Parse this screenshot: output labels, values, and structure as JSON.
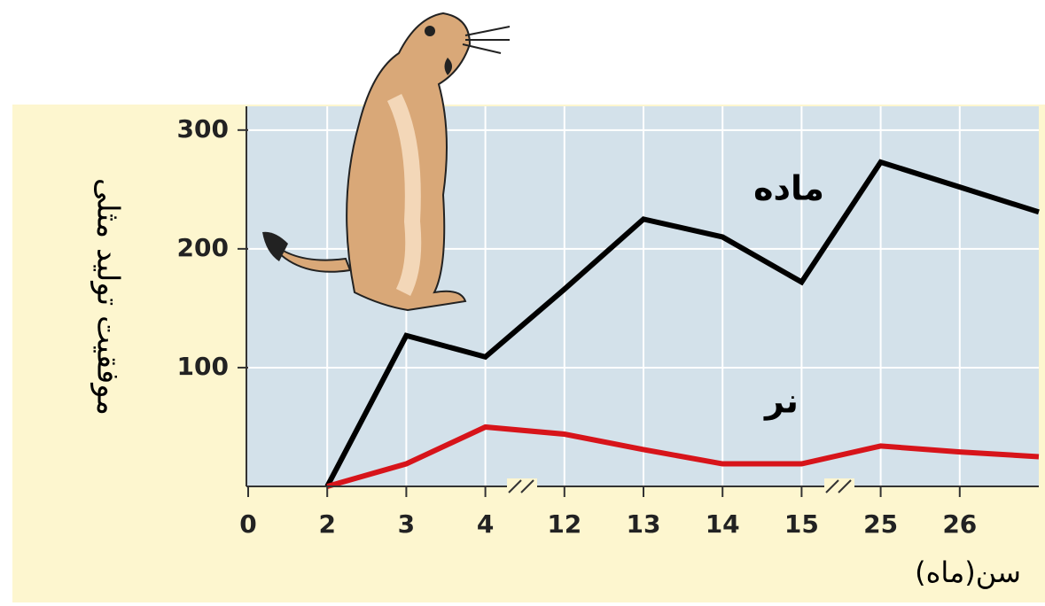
{
  "chart_data": {
    "type": "line",
    "x_label": "سن(ماه)",
    "y_label": "موفقیت تولید مثلی",
    "categories": [
      "0",
      "2",
      "3",
      "4",
      "12",
      "13",
      "14",
      "15",
      "25",
      "26",
      null
    ],
    "series": [
      {
        "name": "ماده",
        "color": "#000000",
        "values": [
          null,
          0,
          127,
          109,
          166,
          225,
          210,
          172,
          273,
          252,
          231
        ]
      },
      {
        "name": "نر",
        "color": "#d7141a",
        "values": [
          null,
          0,
          19,
          50,
          44,
          31,
          19,
          19,
          34,
          29,
          25
        ]
      }
    ],
    "ylim": [
      0,
      320
    ],
    "yticks": [
      100,
      200,
      300
    ],
    "grid": true
  }
}
